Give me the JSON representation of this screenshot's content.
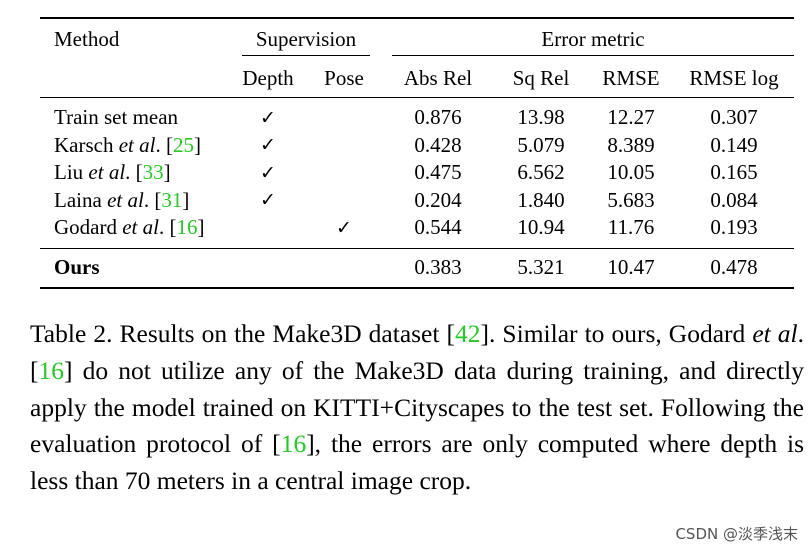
{
  "table": {
    "header": {
      "method": "Method",
      "supervision": "Supervision",
      "error_metric": "Error metric",
      "depth": "Depth",
      "pose": "Pose",
      "abs_rel": "Abs Rel",
      "sq_rel": "Sq Rel",
      "rmse": "RMSE",
      "rmse_log": "RMSE log"
    },
    "rows": [
      {
        "method": "Train set mean",
        "author": "",
        "etal": "",
        "cite": "",
        "close": "",
        "depth": "✓",
        "pose": "",
        "abs_rel": "0.876",
        "sq_rel": "13.98",
        "rmse": "12.27",
        "rmse_log": "0.307"
      },
      {
        "method": "Karsch ",
        "etal": "et al",
        "cite": "25",
        "depth": "✓",
        "pose": "",
        "abs_rel": "0.428",
        "sq_rel": "5.079",
        "rmse": "8.389",
        "rmse_log": "0.149"
      },
      {
        "method": "Liu ",
        "etal": "et al",
        "cite": "33",
        "depth": "✓",
        "pose": "",
        "abs_rel": "0.475",
        "sq_rel": "6.562",
        "rmse": "10.05",
        "rmse_log": "0.165"
      },
      {
        "method": "Laina ",
        "etal": "et al",
        "cite": "31",
        "depth": "✓",
        "pose": "",
        "abs_rel": "0.204",
        "sq_rel": "1.840",
        "rmse": "5.683",
        "rmse_log": "0.084"
      },
      {
        "method": "Godard ",
        "etal": "et al",
        "cite": "16",
        "depth": "",
        "pose": "✓",
        "abs_rel": "0.544",
        "sq_rel": "10.94",
        "rmse": "11.76",
        "rmse_log": "0.193"
      }
    ],
    "ours": {
      "method": "Ours",
      "abs_rel": "0.383",
      "sq_rel": "5.321",
      "rmse": "10.47",
      "rmse_log": "0.478"
    }
  },
  "caption": {
    "p1": "Table 2. Results on the Make3D dataset [",
    "c1": "42",
    "p2": "]. Similar to ours, Godard ",
    "etal": "et al",
    "p3": ". [",
    "c2": "16",
    "p4": "] do not utilize any of the Make3D data during training, and directly apply the model trained on KITTI+Cityscapes to the test set.  Following the evaluation protocol of [",
    "c3": "16",
    "p5": "], the errors are only computed where depth is less than 70 meters in a central image crop."
  },
  "watermark": "CSDN @淡季浅末",
  "colors": {
    "cite": "#1fcc1f"
  }
}
